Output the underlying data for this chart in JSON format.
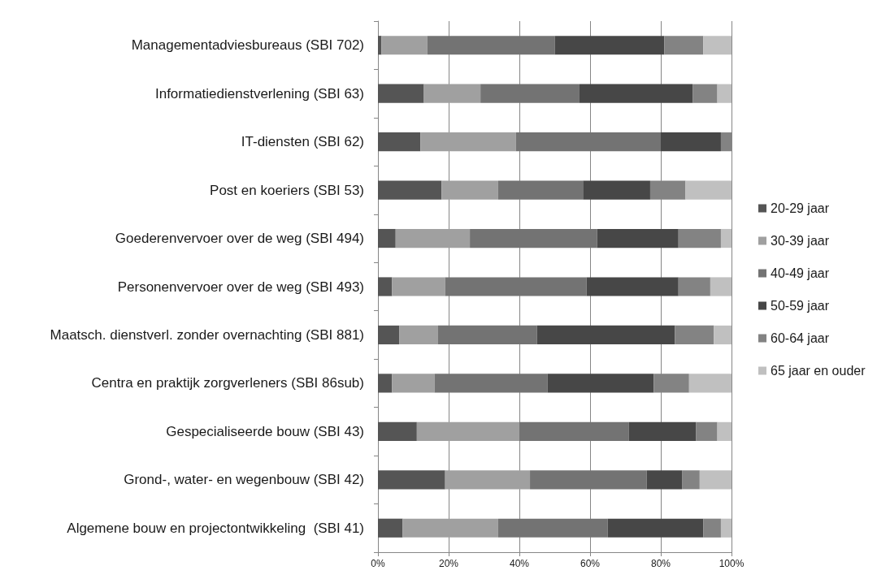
{
  "chart_data": {
    "type": "bar",
    "orientation": "horizontal",
    "stacked": true,
    "categories": [
      "Managementadviesbureaus (SBI 702)",
      "Informatiedienstverlening (SBI 63)",
      "IT-diensten (SBI 62)",
      "Post en koeriers (SBI 53)",
      "Goederenvervoer over de weg (SBI 494)",
      "Personenvervoer over de weg (SBI 493)",
      "Maatsch. dienstverl. zonder overnachting (SBI 881)",
      "Centra en praktijk zorgverleners (SBI 86sub)",
      "Gespecialiseerde bouw (SBI 43)",
      "Grond-, water- en wegenbouw (SBI 42)",
      "Algemene bouw en projectontwikkeling  (SBI 41)"
    ],
    "series": [
      {
        "name": "20-29 jaar",
        "color": "#555555",
        "values": [
          1,
          13,
          12,
          18,
          5,
          4,
          6,
          4,
          11,
          19,
          7
        ]
      },
      {
        "name": "30-39 jaar",
        "color": "#a0a0a0",
        "values": [
          13,
          16,
          27,
          16,
          21,
          15,
          11,
          12,
          29,
          24,
          27
        ]
      },
      {
        "name": "40-49 jaar",
        "color": "#737373",
        "values": [
          36,
          28,
          41,
          24,
          36,
          40,
          28,
          32,
          31,
          33,
          31
        ]
      },
      {
        "name": "50-59 jaar",
        "color": "#474747",
        "values": [
          31,
          32,
          17,
          19,
          23,
          26,
          39,
          30,
          19,
          10,
          27
        ]
      },
      {
        "name": "60-64 jaar",
        "color": "#838383",
        "values": [
          11,
          7,
          3,
          10,
          12,
          9,
          11,
          10,
          6,
          5,
          5
        ]
      },
      {
        "name": "65 jaar en ouder",
        "color": "#c0c0c0",
        "values": [
          8,
          4,
          0,
          13,
          3,
          6,
          5,
          12,
          4,
          9,
          3
        ]
      }
    ],
    "xlim": [
      0,
      100
    ],
    "xticks": [
      {
        "value": 0,
        "label": "0%"
      },
      {
        "value": 20,
        "label": "20%"
      },
      {
        "value": 40,
        "label": "40%"
      },
      {
        "value": 60,
        "label": "60%"
      },
      {
        "value": 80,
        "label": "80%"
      },
      {
        "value": 100,
        "label": "100%"
      }
    ],
    "grid": "x",
    "legend": "right"
  }
}
